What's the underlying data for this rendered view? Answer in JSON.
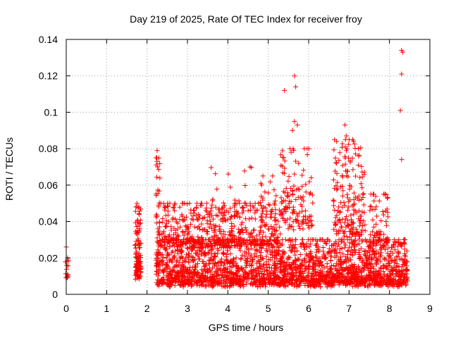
{
  "chart_data": {
    "type": "scatter",
    "title": "Day 219 of 2025, Rate Of TEC Index for receiver froy",
    "xlabel": "GPS time / hours",
    "ylabel": "ROTI / TECUs",
    "xlim": [
      0,
      9
    ],
    "ylim": [
      0,
      0.14
    ],
    "x_ticks": [
      0,
      1,
      2,
      3,
      4,
      5,
      6,
      7,
      8,
      9
    ],
    "x_tick_labels": [
      "0",
      "1",
      "2",
      "3",
      "4",
      "5",
      "6",
      "7",
      "8",
      "9"
    ],
    "y_ticks": [
      0,
      0.02,
      0.04,
      0.06,
      0.08,
      0.1,
      0.12,
      0.14
    ],
    "y_tick_labels": [
      "0",
      "0.02",
      "0.04",
      "0.06",
      "0.08",
      "0.1",
      "0.12",
      "0.14"
    ],
    "grid": true,
    "marker": "+",
    "color": "#ff0000",
    "notable_points": [
      {
        "x": 0.0,
        "y": 0.026
      },
      {
        "x": 1.75,
        "y": 0.05
      },
      {
        "x": 2.25,
        "y": 0.079
      },
      {
        "x": 5.4,
        "y": 0.112
      },
      {
        "x": 5.65,
        "y": 0.12
      },
      {
        "x": 5.68,
        "y": 0.114
      },
      {
        "x": 5.65,
        "y": 0.095
      },
      {
        "x": 5.72,
        "y": 0.093
      },
      {
        "x": 5.6,
        "y": 0.09
      },
      {
        "x": 6.9,
        "y": 0.093
      },
      {
        "x": 6.93,
        "y": 0.087
      },
      {
        "x": 6.95,
        "y": 0.08
      },
      {
        "x": 8.3,
        "y": 0.134
      },
      {
        "x": 8.33,
        "y": 0.133
      },
      {
        "x": 8.3,
        "y": 0.121
      },
      {
        "x": 8.27,
        "y": 0.101
      },
      {
        "x": 8.3,
        "y": 0.074
      }
    ],
    "clusters": [
      {
        "x_range": [
          -0.02,
          0.05
        ],
        "y_range": [
          0.008,
          0.02
        ],
        "count": 14
      },
      {
        "x_range": [
          1.7,
          1.85
        ],
        "y_range": [
          0.008,
          0.048
        ],
        "count": 110
      },
      {
        "x_range": [
          2.22,
          2.32
        ],
        "y_range": [
          0.006,
          0.075
        ],
        "count": 60
      },
      {
        "x_range": [
          2.25,
          8.45
        ],
        "y_range": [
          0.004,
          0.03
        ],
        "count": 2300
      },
      {
        "x_range": [
          2.3,
          5.3
        ],
        "y_range": [
          0.025,
          0.05
        ],
        "count": 450
      },
      {
        "x_range": [
          3.5,
          4.6
        ],
        "y_range": [
          0.04,
          0.07
        ],
        "count": 40
      },
      {
        "x_range": [
          4.8,
          5.2
        ],
        "y_range": [
          0.04,
          0.065
        ],
        "count": 30
      },
      {
        "x_range": [
          5.3,
          6.1
        ],
        "y_range": [
          0.035,
          0.08
        ],
        "count": 130
      },
      {
        "x_range": [
          6.6,
          7.4
        ],
        "y_range": [
          0.03,
          0.085
        ],
        "count": 180
      },
      {
        "x_range": [
          7.5,
          8.0
        ],
        "y_range": [
          0.025,
          0.055
        ],
        "count": 70
      }
    ]
  }
}
